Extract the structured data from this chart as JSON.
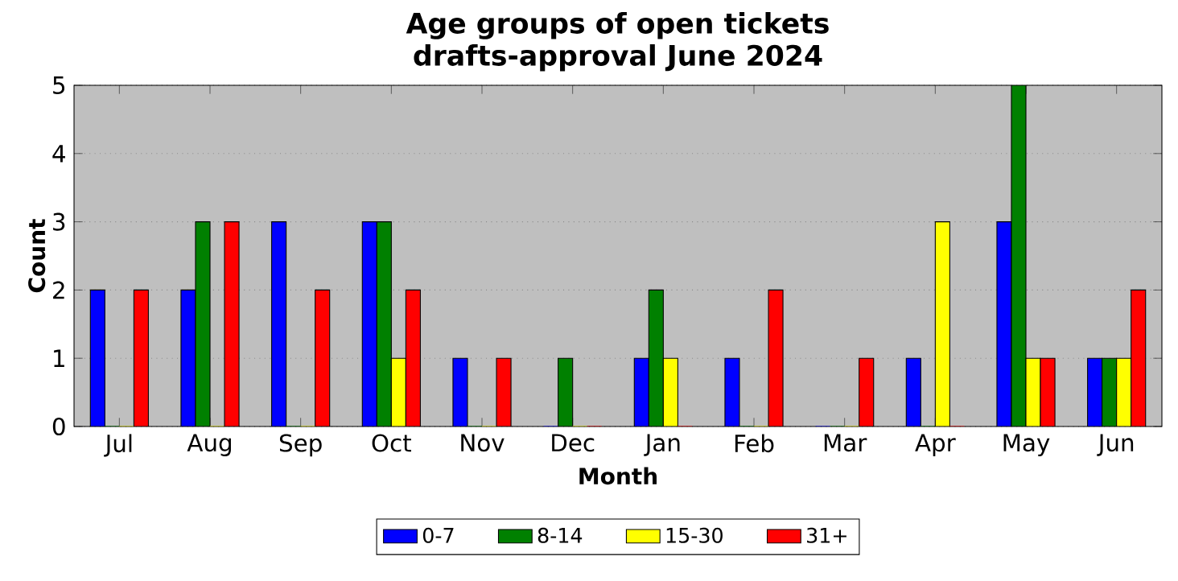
{
  "chart_data": {
    "type": "bar",
    "title": "Age groups of open tickets",
    "subtitle": "drafts-approval June 2024",
    "xlabel": "Month",
    "ylabel": "Count",
    "categories": [
      "Jul",
      "Aug",
      "Sep",
      "Oct",
      "Nov",
      "Dec",
      "Jan",
      "Feb",
      "Mar",
      "Apr",
      "May",
      "Jun"
    ],
    "series": [
      {
        "name": "0-7",
        "color": "#0000ff",
        "values": [
          2,
          2,
          3,
          3,
          1,
          0,
          1,
          1,
          0,
          1,
          3,
          1
        ]
      },
      {
        "name": "8-14",
        "color": "#008000",
        "values": [
          0,
          3,
          0,
          3,
          0,
          1,
          2,
          0,
          0,
          0,
          5,
          1
        ]
      },
      {
        "name": "15-30",
        "color": "#ffff00",
        "values": [
          0,
          0,
          0,
          1,
          0,
          0,
          1,
          0,
          0,
          3,
          1,
          1
        ]
      },
      {
        "name": "31+",
        "color": "#ff0000",
        "values": [
          2,
          3,
          2,
          2,
          1,
          0,
          0,
          2,
          1,
          0,
          1,
          2
        ]
      }
    ],
    "ylim": [
      0,
      5
    ],
    "yticks": [
      0,
      1,
      2,
      3,
      4,
      5
    ],
    "grid": "y",
    "legend": "bottom"
  }
}
